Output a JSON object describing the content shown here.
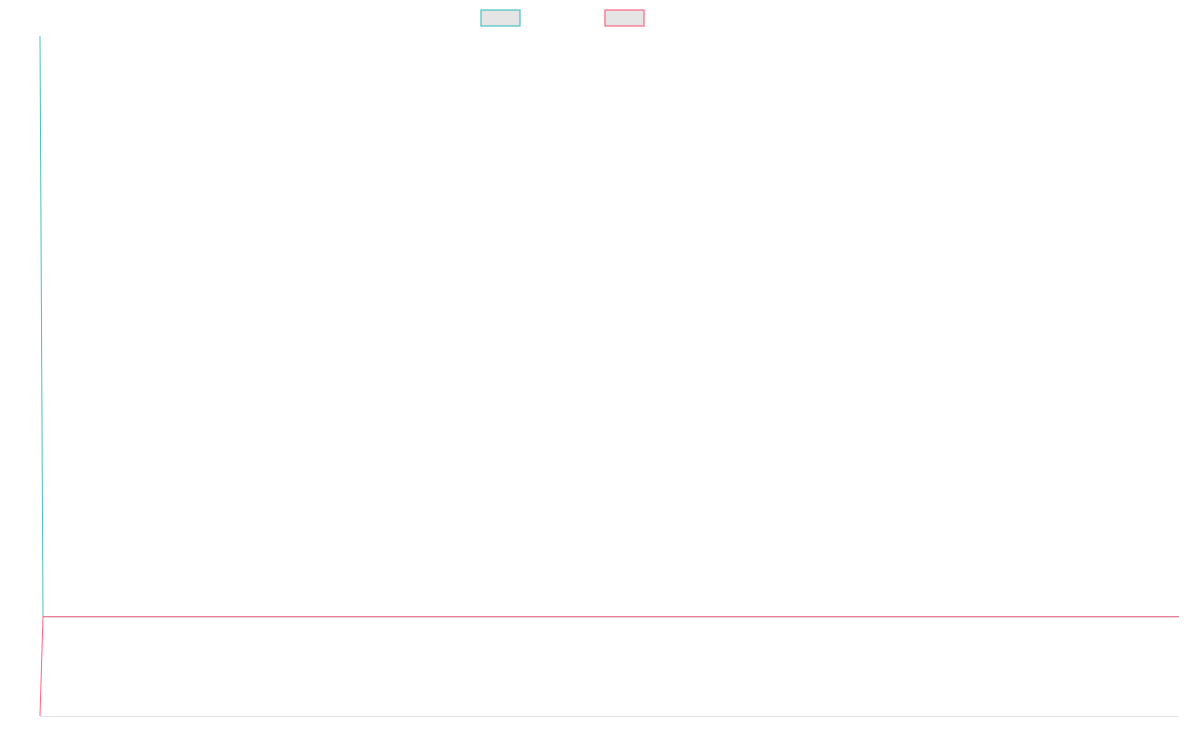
{
  "chart_data": {
    "type": "line",
    "title": "",
    "xlabel": "",
    "ylabel": "",
    "ylim": [
      0,
      100
    ],
    "grid": false,
    "legend_position": "top",
    "series": [
      {
        "color": "#4bc0c0",
        "values": [
          100,
          14.6,
          14.6,
          14.6,
          14.6,
          14.6,
          14.6,
          14.6,
          14.6,
          14.6,
          14.6,
          14.6,
          14.6,
          14.6,
          14.6,
          14.6,
          14.6,
          14.6,
          14.6,
          14.6,
          14.6,
          14.6,
          14.6,
          14.6,
          14.6,
          14.6,
          14.6,
          14.6,
          14.6,
          14.6,
          14.6,
          14.6,
          14.6,
          14.6,
          14.6,
          14.6,
          14.6,
          14.6,
          14.6,
          14.6,
          14.6,
          14.6,
          14.6,
          14.6,
          14.6,
          14.6,
          14.6,
          14.6,
          14.6,
          14.6,
          14.6,
          14.6,
          14.6,
          14.6,
          14.6,
          14.6,
          14.6,
          14.6,
          14.6,
          14.6,
          14.6,
          14.6,
          14.6,
          14.6,
          14.6,
          14.6,
          14.6,
          14.6,
          14.6,
          14.6,
          14.6,
          14.6,
          14.6,
          14.6,
          14.6,
          14.6,
          14.6,
          14.6,
          14.6,
          14.6,
          14.6,
          14.6,
          14.6,
          14.6,
          14.6,
          14.6,
          14.6,
          14.6,
          14.6,
          14.6,
          14.6,
          14.6,
          14.6,
          14.6,
          14.6,
          14.6,
          14.6,
          14.6,
          14.6,
          14.6,
          14.6,
          14.6,
          14.6,
          14.6,
          14.6,
          14.6,
          14.6,
          14.6,
          14.6,
          14.6,
          14.6,
          14.6,
          14.6,
          14.6,
          14.6,
          14.6,
          14.6,
          14.6,
          14.6,
          14.6
        ]
      },
      {
        "color": "#ff6384",
        "values": [
          0,
          14.6,
          14.6,
          14.6,
          14.6,
          14.6,
          14.6,
          14.6,
          14.6,
          14.6,
          14.6,
          14.6,
          14.6,
          14.6,
          14.6,
          14.6,
          14.6,
          14.6,
          14.6,
          14.6,
          14.6,
          14.6,
          14.6,
          14.6,
          14.6,
          14.6,
          14.6,
          14.6,
          14.6,
          14.6,
          14.6,
          14.6,
          14.6,
          14.6,
          14.6,
          14.6,
          14.6,
          14.6,
          14.6,
          14.6,
          14.6,
          14.6,
          14.6,
          14.6,
          14.6,
          14.6,
          14.6,
          14.6,
          14.6,
          14.6,
          14.6,
          14.6,
          14.6,
          14.6,
          14.6,
          14.6,
          14.6,
          14.6,
          14.6,
          14.6,
          14.6,
          14.6,
          14.6,
          14.6,
          14.6,
          14.6,
          14.6,
          14.6,
          14.6,
          14.6,
          14.6,
          14.6,
          14.6,
          14.6,
          14.6,
          14.6,
          14.6,
          14.6,
          14.6,
          14.6,
          14.6,
          14.6,
          14.6,
          14.6,
          14.6,
          14.6,
          14.6,
          14.6,
          14.6,
          14.6,
          14.6,
          14.6,
          14.6,
          14.6,
          14.6,
          14.6,
          14.6,
          14.6,
          14.6,
          14.6,
          14.6,
          14.6,
          14.6,
          14.6,
          14.6,
          14.6,
          14.6,
          14.6,
          14.6,
          14.6,
          14.6,
          14.6,
          14.6,
          14.6,
          14.6,
          14.6,
          14.6,
          14.6,
          14.6,
          14.6
        ]
      }
    ]
  }
}
